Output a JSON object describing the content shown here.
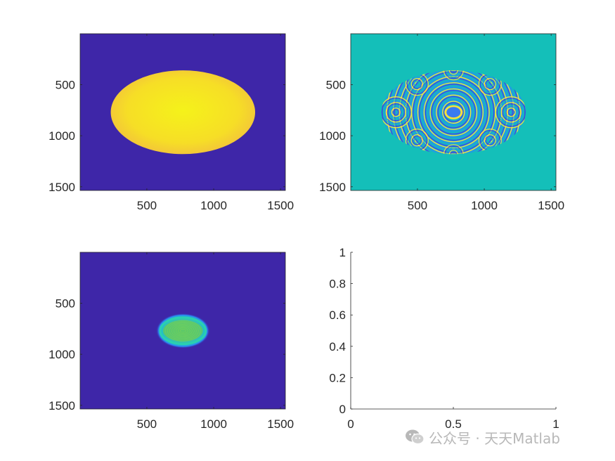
{
  "chart_data": [
    {
      "type": "heatmap",
      "panel": "top-left",
      "description_visible": "uniform dark blue background with a large yellow ellipse",
      "x_ticks": [
        500,
        1000,
        1500
      ],
      "y_ticks": [
        500,
        1000,
        1500
      ],
      "x_tick_labels": [
        "500",
        "1000",
        "1500"
      ],
      "y_tick_labels": [
        "500",
        "1000",
        "1500"
      ],
      "xlim": [
        1,
        1536
      ],
      "ylim": [
        1,
        1536
      ],
      "image_rows": 1536,
      "ellipse": {
        "center_x": 770,
        "center_y": 770,
        "radius_x": 540,
        "radius_y": 410
      },
      "colors": {
        "background": "#3e26a8",
        "fill_center": "#f5f21a",
        "fill_edge": "#f6c03a"
      }
    },
    {
      "type": "heatmap",
      "panel": "top-right",
      "description_visible": "teal background with an elliptical region of interference fringes",
      "x_ticks": [
        500,
        1000,
        1500
      ],
      "y_ticks": [
        500,
        1000,
        1500
      ],
      "x_tick_labels": [
        "500",
        "1000",
        "1500"
      ],
      "y_tick_labels": [
        "500",
        "1000",
        "1500"
      ],
      "xlim": [
        1,
        1536
      ],
      "ylim": [
        1,
        1536
      ],
      "ellipse": {
        "center_x": 770,
        "center_y": 770,
        "radius_x": 540,
        "radius_y": 410
      },
      "colors": {
        "background": "#14bfb9",
        "fringe_a": "#f9e33a",
        "fringe_b": "#3f4fd6",
        "fringe_c": "#1f9fe0",
        "center": "#3a7bf0"
      }
    },
    {
      "type": "heatmap",
      "panel": "bottom-left",
      "description_visible": "dark blue background with a small bright green-cyan ellipse at center",
      "x_ticks": [
        500,
        1000,
        1500
      ],
      "y_ticks": [
        500,
        1000,
        1500
      ],
      "x_tick_labels": [
        "500",
        "1000",
        "1500"
      ],
      "y_tick_labels": [
        "500",
        "1000",
        "1500"
      ],
      "xlim": [
        1,
        1536
      ],
      "ylim": [
        1,
        1536
      ],
      "ellipse": {
        "center_x": 770,
        "center_y": 770,
        "radius_x": 170,
        "radius_y": 130
      },
      "colors": {
        "background": "#3e26a8",
        "glow": "#2a7ff0",
        "ring": "#2ad0b0",
        "fill": "#5cc86a"
      }
    },
    {
      "type": "line",
      "panel": "bottom-right",
      "description_visible": "empty axes",
      "series": [],
      "xlim": [
        0,
        1
      ],
      "ylim": [
        0,
        1
      ],
      "x_ticks": [
        0,
        0.5,
        1
      ],
      "y_ticks": [
        0,
        0.2,
        0.4,
        0.6,
        0.8,
        1
      ],
      "x_tick_labels": [
        "0",
        "0.5",
        "1"
      ],
      "y_tick_labels": [
        "0",
        "0.2",
        "0.4",
        "0.6",
        "0.8",
        "1"
      ]
    }
  ],
  "watermark": {
    "text": "公众号 · 天天Matlab",
    "icon": "wechat-icon",
    "color": "#b8b8b8"
  }
}
